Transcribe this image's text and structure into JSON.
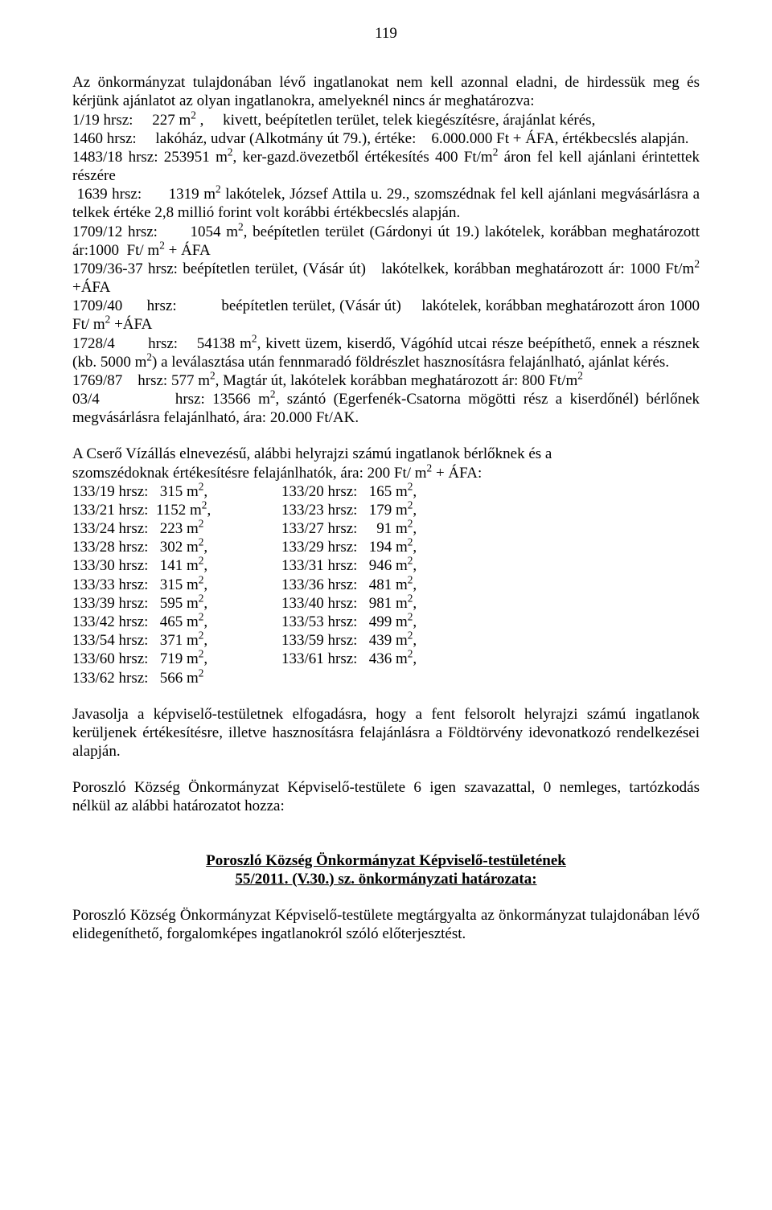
{
  "page_number": "119",
  "p1_html": "Az önkormányzat tulajdonában lévő ingatlanokat nem kell azonnal eladni, de hirdessük meg és kérjünk ajánlatot az olyan ingatlanokra, amelyeknél nincs ár meghatározva:<br>1/19 hrsz: &nbsp;&nbsp;&nbsp; 227 m<sup>2</sup> ,&nbsp;&nbsp;&nbsp;&nbsp; kivett, beépítetlen terület, telek kiegészítésre, árajánlat kérés,<br>1460 hrsz: &nbsp;&nbsp;&nbsp;&nbsp;lakóház, udvar (Alkotmány út 79.), értéke: &nbsp;&nbsp;&nbsp;6.000.000 Ft + ÁFA, értékbecslés alapján.<br>1483/18 hrsz: 253951 m<sup>2</sup>, ker-gazd.övezetből értékesítés 400 Ft/m<sup>2</sup> áron fel kell ajánlani érintettek részére<br>&nbsp;1639 hrsz: &nbsp;&nbsp;&nbsp;&nbsp; 1319 m<sup>2</sup> lakótelek, József Attila u. 29., szomszédnak fel kell ajánlani megvásárlásra a telkek értéke 2,8 millió forint volt korábbi értékbecslés alapján.<br>1709/12 hrsz: &nbsp;&nbsp;&nbsp;&nbsp; 1054 m<sup>2</sup>, beépítetlen terület (Gárdonyi út 19.) lakótelek, korábban meghatározott ár:1000 &nbsp;Ft/ m<sup>2</sup> + ÁFA<br>1709/36-37 hrsz: beépítetlen terület, (Vásár út) &nbsp;&nbsp;lakótelkek, korábban meghatározott ár: 1000 Ft/m<sup>2</sup> +ÁFA<br>1709/40 &nbsp;&nbsp;&nbsp;&nbsp; hrsz: &nbsp;&nbsp;&nbsp;&nbsp;&nbsp;&nbsp;&nbsp;&nbsp;&nbsp; beépítetlen terület, (Vásár út) &nbsp;&nbsp;&nbsp;&nbsp;lakótelek, korábban meghatározott áron 1000 Ft/ m<sup>2</sup> +ÁFA<br>1728/4 &nbsp;&nbsp;&nbsp;&nbsp;&nbsp; hrsz: &nbsp;&nbsp;&nbsp;54138 m<sup>2</sup>, kivett üzem, kiserdő, Vágóhíd utcai része beépíthető, ennek a résznek (kb. 5000 m<sup>2</sup>) a leválasztása után fennmaradó földrészlet hasznosításra felajánlható, ajánlat kérés.<br>1769/87 &nbsp;&nbsp; hrsz: 577 m<sup>2</sup>, Magtár út, lakótelek korábban meghatározott ár: 800 Ft/m<sup>2</sup><br>03/4 &nbsp;&nbsp;&nbsp;&nbsp;&nbsp;&nbsp;&nbsp;&nbsp; hrsz: 13566 m<sup>2</sup>, szántó (Egerfenék-Csatorna mögötti rész a kiserdőnél) bérlőnek megvásárlásra felajánlható, ára: 20.000 Ft/AK.",
  "p2_intro_html": "A Cserő Vízállás elnevezésű, alábbi helyrajzi számú ingatlanok bérlőknek és a<br>szomszédoknak értékesítésre felajánlhatók, ára: 200 Ft/ m<sup>2</sup> + ÁFA:",
  "parcel_rows": [
    {
      "l": "133/19 hrsz:   315 m<sup>2</sup>,",
      "r": "133/20 hrsz:   165 m<sup>2</sup>,"
    },
    {
      "l": "133/21 hrsz:  1152 m<sup>2</sup>,",
      "r": "133/23 hrsz:   179 m<sup>2</sup>,"
    },
    {
      "l": "133/24 hrsz:   223 m<sup>2</sup>",
      "r": "133/27 hrsz:     91 m<sup>2</sup>,"
    },
    {
      "l": "133/28 hrsz:   302 m<sup>2</sup>,",
      "r": "133/29 hrsz:   194 m<sup>2</sup>,"
    },
    {
      "l": "133/30 hrsz:   141 m<sup>2</sup>,",
      "r": "133/31 hrsz:   946 m<sup>2</sup>,"
    },
    {
      "l": "133/33 hrsz:   315 m<sup>2</sup>,",
      "r": "133/36 hrsz:   481 m<sup>2</sup>,"
    },
    {
      "l": "133/39 hrsz:   595 m<sup>2</sup>,",
      "r": "133/40 hrsz:   981 m<sup>2</sup>,"
    },
    {
      "l": "133/42 hrsz:   465 m<sup>2</sup>,",
      "r": "133/53 hrsz:   499 m<sup>2</sup>,"
    },
    {
      "l": "133/54 hrsz:   371 m<sup>2</sup>,",
      "r": "133/59 hrsz:   439 m<sup>2</sup>,"
    },
    {
      "l": "133/60 hrsz:   719 m<sup>2</sup>,",
      "r": "133/61 hrsz:   436 m<sup>2</sup>,"
    },
    {
      "l": "133/62 hrsz:   566 m<sup>2</sup>",
      "r": ""
    }
  ],
  "p3": "Javasolja a képviselő-testületnek elfogadásra, hogy a fent felsorolt helyrajzi számú ingatlanok kerüljenek értékesítésre, illetve hasznosításra felajánlásra a Földtörvény idevonatkozó rendelkezései alapján.",
  "p4": "Poroszló Község Önkormányzat Képviselő-testülete 6 igen szavazattal, 0 nemleges, tartózkodás nélkül az alábbi határozatot hozza:",
  "title_line1": "Poroszló Község Önkormányzat Képviselő-testületének",
  "title_line2": "55/2011. (V.30.) sz. önkormányzati határozata:",
  "p5": "Poroszló Község Önkormányzat Képviselő-testülete megtárgyalta az önkormányzat tulajdonában lévő elidegeníthető, forgalomképes ingatlanokról szóló előterjesztést."
}
